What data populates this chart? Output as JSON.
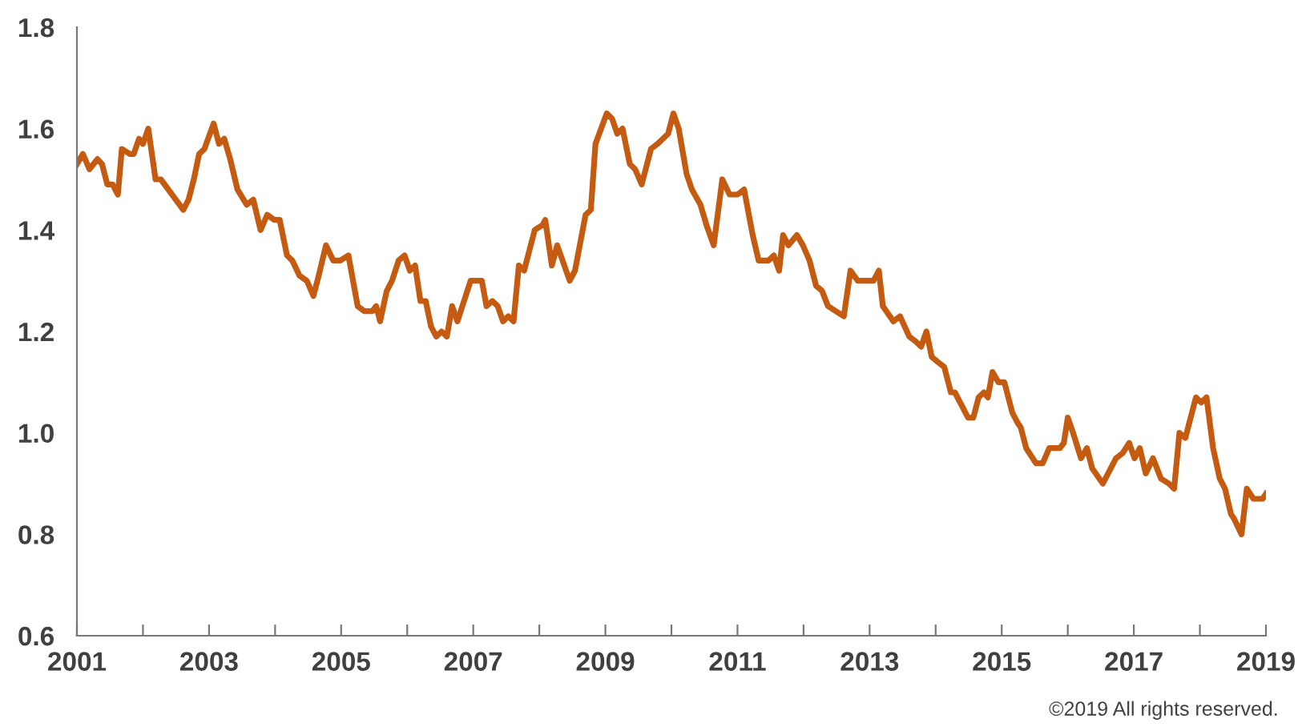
{
  "chart_data": {
    "type": "line",
    "x": [
      2001.0,
      2001.09,
      2001.19,
      2001.31,
      2001.38,
      2001.46,
      2001.54,
      2001.62,
      2001.68,
      2001.8,
      2001.86,
      2001.94,
      2002.0,
      2002.08,
      2002.19,
      2002.27,
      2002.61,
      2002.69,
      2002.77,
      2002.85,
      2002.93,
      2003.07,
      2003.15,
      2003.23,
      2003.32,
      2003.43,
      2003.57,
      2003.67,
      2003.78,
      2003.88,
      2003.99,
      2004.07,
      2004.18,
      2004.26,
      2004.37,
      2004.48,
      2004.58,
      2004.66,
      2004.77,
      2004.88,
      2004.99,
      2005.11,
      2005.25,
      2005.35,
      2005.47,
      2005.53,
      2005.59,
      2005.69,
      2005.77,
      2005.87,
      2005.96,
      2006.04,
      2006.12,
      2006.2,
      2006.28,
      2006.36,
      2006.44,
      2006.52,
      2006.6,
      2006.68,
      2006.76,
      2006.96,
      2007.13,
      2007.2,
      2007.29,
      2007.37,
      2007.45,
      2007.53,
      2007.61,
      2007.69,
      2007.77,
      2007.93,
      2008.05,
      2008.09,
      2008.19,
      2008.27,
      2008.46,
      2008.54,
      2008.7,
      2008.78,
      2008.85,
      2009.02,
      2009.1,
      2009.18,
      2009.26,
      2009.37,
      2009.45,
      2009.55,
      2009.69,
      2009.79,
      2009.87,
      2009.95,
      2010.03,
      2010.11,
      2010.23,
      2010.31,
      2010.44,
      2010.53,
      2010.64,
      2010.77,
      2010.88,
      2011.0,
      2011.1,
      2011.23,
      2011.32,
      2011.47,
      2011.55,
      2011.63,
      2011.69,
      2011.77,
      2011.9,
      2011.99,
      2012.09,
      2012.19,
      2012.28,
      2012.37,
      2012.49,
      2012.61,
      2012.71,
      2012.82,
      2013.06,
      2013.14,
      2013.2,
      2013.36,
      2013.46,
      2013.6,
      2013.7,
      2013.78,
      2013.86,
      2013.94,
      2014.03,
      2014.13,
      2014.23,
      2014.29,
      2014.41,
      2014.49,
      2014.57,
      2014.65,
      2014.73,
      2014.79,
      2014.86,
      2014.95,
      2015.04,
      2015.16,
      2015.24,
      2015.29,
      2015.37,
      2015.52,
      2015.62,
      2015.72,
      2015.88,
      2015.94,
      2016.0,
      2016.08,
      2016.2,
      2016.29,
      2016.37,
      2016.53,
      2016.61,
      2016.73,
      2016.83,
      2016.93,
      2017.01,
      2017.09,
      2017.18,
      2017.29,
      2017.41,
      2017.53,
      2017.61,
      2017.69,
      2017.78,
      2017.94,
      2018.02,
      2018.1,
      2018.2,
      2018.3,
      2018.38,
      2018.47,
      2018.52,
      2018.63,
      2018.71,
      2018.81,
      2018.95,
      2019.0
    ],
    "series": [
      {
        "color": "#c55a11",
        "values": [
          1.53,
          1.55,
          1.52,
          1.54,
          1.53,
          1.49,
          1.49,
          1.47,
          1.56,
          1.55,
          1.55,
          1.58,
          1.57,
          1.6,
          1.5,
          1.5,
          1.44,
          1.46,
          1.5,
          1.55,
          1.56,
          1.61,
          1.57,
          1.58,
          1.54,
          1.48,
          1.45,
          1.46,
          1.4,
          1.43,
          1.42,
          1.42,
          1.35,
          1.34,
          1.31,
          1.3,
          1.27,
          1.31,
          1.37,
          1.34,
          1.34,
          1.35,
          1.25,
          1.24,
          1.24,
          1.25,
          1.22,
          1.28,
          1.3,
          1.34,
          1.35,
          1.32,
          1.33,
          1.26,
          1.26,
          1.21,
          1.19,
          1.2,
          1.19,
          1.25,
          1.22,
          1.3,
          1.3,
          1.25,
          1.26,
          1.25,
          1.22,
          1.23,
          1.22,
          1.33,
          1.32,
          1.4,
          1.41,
          1.42,
          1.33,
          1.37,
          1.3,
          1.32,
          1.43,
          1.44,
          1.57,
          1.63,
          1.62,
          1.59,
          1.6,
          1.53,
          1.52,
          1.49,
          1.56,
          1.57,
          1.58,
          1.59,
          1.63,
          1.6,
          1.51,
          1.48,
          1.45,
          1.41,
          1.37,
          1.5,
          1.47,
          1.47,
          1.48,
          1.39,
          1.34,
          1.34,
          1.35,
          1.32,
          1.39,
          1.37,
          1.39,
          1.37,
          1.34,
          1.29,
          1.28,
          1.25,
          1.24,
          1.23,
          1.32,
          1.3,
          1.3,
          1.32,
          1.25,
          1.22,
          1.23,
          1.19,
          1.18,
          1.17,
          1.2,
          1.15,
          1.14,
          1.13,
          1.08,
          1.08,
          1.05,
          1.03,
          1.03,
          1.07,
          1.08,
          1.07,
          1.12,
          1.1,
          1.1,
          1.04,
          1.02,
          1.01,
          0.97,
          0.94,
          0.94,
          0.97,
          0.97,
          0.98,
          1.03,
          1.0,
          0.95,
          0.97,
          0.93,
          0.9,
          0.92,
          0.95,
          0.96,
          0.98,
          0.95,
          0.97,
          0.92,
          0.95,
          0.91,
          0.9,
          0.89,
          1.0,
          0.99,
          1.07,
          1.06,
          1.07,
          0.97,
          0.91,
          0.89,
          0.84,
          0.83,
          0.8,
          0.89,
          0.87,
          0.87,
          0.88
        ]
      }
    ],
    "xlim": [
      2001,
      2019
    ],
    "ylim": [
      0.6,
      1.8
    ],
    "xticks": [
      2001,
      {
        "value": 2002,
        "label": null
      },
      2003,
      {
        "value": 2004,
        "label": null
      },
      2005,
      {
        "value": 2006,
        "label": null
      },
      2007,
      {
        "value": 2008,
        "label": null
      },
      2009,
      {
        "value": 2010,
        "label": null
      },
      2011,
      {
        "value": 2012,
        "label": null
      },
      2013,
      {
        "value": 2014,
        "label": null
      },
      2015,
      {
        "value": 2016,
        "label": null
      },
      2017,
      {
        "value": 2018,
        "label": null
      },
      2019
    ],
    "yticks": [
      0.6,
      0.8,
      {
        "value": 1.0,
        "label": "1.0"
      },
      1.2,
      1.4,
      1.6,
      1.8
    ],
    "annotations": [
      "©2019 All rights reserved."
    ],
    "grid": false,
    "line_style": "solid"
  }
}
